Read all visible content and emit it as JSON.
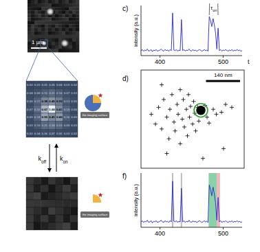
{
  "figure": {
    "scale_bar": "1 µm",
    "pixel_grid": [
      [
        "0.02",
        "0.03",
        "0.05",
        "0.06",
        "0.04",
        "0.03",
        "0.02"
      ],
      [
        "0.04",
        "0.08",
        "0.15",
        "0.21",
        "0.14",
        "0.07",
        "0.03"
      ],
      [
        "0.06",
        "0.17",
        "0.38",
        "0.45",
        "0.33",
        "0.13",
        "0.05"
      ],
      [
        "0.07",
        "0.22",
        "0.67",
        "1.00",
        "0.41",
        "0.19",
        "0.06"
      ],
      [
        "0.05",
        "0.18",
        "0.55",
        "0.41",
        "0.49",
        "0.16",
        "0.05"
      ],
      [
        "0.03",
        "0.10",
        "0.21",
        "0.24",
        "0.19",
        "0.09",
        "0.03"
      ],
      [
        "0.02",
        "0.04",
        "0.06",
        "0.07",
        "0.05",
        "0.03",
        "0.02"
      ]
    ],
    "rate_off": {
      "symbol": "k",
      "subscript": "off"
    },
    "rate_on": {
      "symbol": "k",
      "subscript": "on"
    },
    "surface_label_bound": "the imaging surface",
    "surface_label_unbound": "the imaging surface"
  },
  "chart_data": [
    {
      "type": "line",
      "title": "c)",
      "y_label": "intensity (a.u.)",
      "x_label": "t",
      "x": [
        370,
        372,
        374,
        376,
        378,
        380,
        382,
        384,
        386,
        388,
        390,
        392,
        394,
        396,
        398,
        400,
        402,
        404,
        406,
        408,
        410,
        412,
        414,
        416,
        418,
        420,
        422,
        424,
        426,
        428,
        430,
        432,
        434,
        436,
        438,
        440,
        442,
        444,
        446,
        448,
        450,
        452,
        454,
        456,
        458,
        460,
        462,
        464,
        466,
        468,
        470,
        472,
        474,
        476,
        478,
        480,
        482,
        484,
        486,
        488,
        490,
        492,
        494,
        496,
        498,
        500,
        502,
        504,
        506,
        508,
        510,
        512,
        514,
        516,
        518,
        520,
        522,
        524,
        526,
        528,
        530
      ],
      "series": [
        {
          "color": "#2424d0",
          "values": [
            0.1,
            0.12,
            0.09,
            0.11,
            0.1,
            0.13,
            0.09,
            0.1,
            0.12,
            0.08,
            0.11,
            0.1,
            0.12,
            0.09,
            0.1,
            0.11,
            0.13,
            0.1,
            0.09,
            0.12,
            0.1,
            0.11,
            0.09,
            0.12,
            0.1,
            0.85,
            0.11,
            0.1,
            0.12,
            0.09,
            0.11,
            0.1,
            0.72,
            0.1,
            0.12,
            0.09,
            0.11,
            0.1,
            0.13,
            0.1,
            0.09,
            0.12,
            0.1,
            0.11,
            0.09,
            0.1,
            0.12,
            0.11,
            0.09,
            0.1,
            0.12,
            0.1,
            0.11,
            0.09,
            0.78,
            0.7,
            0.58,
            0.74,
            0.62,
            0.45,
            0.13,
            0.55,
            0.1,
            0.12,
            0.09,
            0.11,
            0.1,
            0.12,
            0.1,
            0.09,
            0.11,
            0.1,
            0.12,
            0.09,
            0.11,
            0.1,
            0.12,
            0.1,
            0.11,
            0.09,
            0.1
          ]
        }
      ],
      "xlim": [
        370,
        530
      ],
      "xticks": [
        400,
        500
      ],
      "ylim": [
        0,
        1
      ],
      "tick_labels": "x",
      "annotations": [
        {
          "text": "τ",
          "subscript": "on",
          "x_start": 478,
          "x_end": 492
        }
      ]
    },
    {
      "type": "scatter",
      "title": "d)",
      "marker": "plus",
      "color": "#000000",
      "x": [
        10,
        14,
        17,
        20,
        22,
        25,
        27,
        28,
        30,
        32,
        33,
        35,
        36,
        38,
        38,
        40,
        41,
        42,
        44,
        45,
        46,
        47,
        48,
        50,
        51,
        52,
        53,
        55,
        56,
        62,
        64,
        66,
        70,
        73,
        78,
        80,
        82,
        88,
        25,
        60,
        20,
        56,
        57,
        58,
        59,
        60,
        57,
        58,
        59,
        58,
        57,
        60,
        56
      ],
      "values": [
        55,
        45,
        62,
        40,
        70,
        52,
        30,
        60,
        75,
        47,
        38,
        65,
        55,
        80,
        25,
        50,
        70,
        42,
        60,
        33,
        75,
        52,
        63,
        45,
        68,
        56,
        38,
        62,
        48,
        64,
        52,
        46,
        60,
        55,
        57,
        20,
        65,
        62,
        15,
        10,
        85,
        58,
        60,
        57,
        61,
        59,
        58,
        60,
        58,
        59,
        61,
        57,
        60
      ],
      "xlim": [
        0,
        100
      ],
      "ylim": [
        0,
        100
      ],
      "tick_labels": false,
      "circle": {
        "x": 58,
        "y": 59,
        "r": 6,
        "color": "#2ca02c"
      },
      "scale_bar": {
        "label": "140 nm",
        "length": 33
      }
    },
    {
      "type": "line",
      "title": "f)",
      "y_label": "intensity (a.u.)",
      "x": [
        370,
        372,
        374,
        376,
        378,
        380,
        382,
        384,
        386,
        388,
        390,
        392,
        394,
        396,
        398,
        400,
        402,
        404,
        406,
        408,
        410,
        412,
        414,
        416,
        418,
        420,
        422,
        424,
        426,
        428,
        430,
        432,
        434,
        436,
        438,
        440,
        442,
        444,
        446,
        448,
        450,
        452,
        454,
        456,
        458,
        460,
        462,
        464,
        466,
        468,
        470,
        472,
        474,
        476,
        478,
        480,
        482,
        484,
        486,
        488,
        490,
        492,
        494,
        496,
        498,
        500,
        502,
        504,
        506,
        508,
        510,
        512,
        514,
        516,
        518,
        520,
        522,
        524,
        526,
        528,
        530
      ],
      "series": [
        {
          "color": "#2424d0",
          "values": [
            0.1,
            0.12,
            0.09,
            0.11,
            0.1,
            0.13,
            0.09,
            0.1,
            0.12,
            0.08,
            0.11,
            0.1,
            0.12,
            0.09,
            0.1,
            0.11,
            0.13,
            0.1,
            0.09,
            0.12,
            0.1,
            0.11,
            0.09,
            0.12,
            0.1,
            0.85,
            0.11,
            0.1,
            0.12,
            0.09,
            0.11,
            0.1,
            0.72,
            0.1,
            0.12,
            0.09,
            0.11,
            0.1,
            0.13,
            0.1,
            0.09,
            0.12,
            0.1,
            0.11,
            0.09,
            0.1,
            0.12,
            0.11,
            0.09,
            0.1,
            0.12,
            0.1,
            0.11,
            0.09,
            0.78,
            0.7,
            0.58,
            0.74,
            0.62,
            0.45,
            0.13,
            0.55,
            0.1,
            0.12,
            0.09,
            0.11,
            0.1,
            0.12,
            0.1,
            0.09,
            0.11,
            0.1,
            0.12,
            0.09,
            0.11,
            0.1,
            0.12,
            0.1,
            0.11,
            0.09,
            0.1
          ]
        }
      ],
      "xlim": [
        370,
        530
      ],
      "xticks": [
        400,
        500
      ],
      "ylim": [
        0,
        1
      ],
      "tick_labels": "x",
      "regions": [
        {
          "start": 419,
          "end": 421,
          "color": "#888888"
        },
        {
          "start": 433,
          "end": 435,
          "color": "#888888"
        },
        {
          "start": 477,
          "end": 490,
          "color": "#3cb371"
        },
        {
          "start": 490,
          "end": 495,
          "color": "#e8858a"
        }
      ]
    }
  ]
}
